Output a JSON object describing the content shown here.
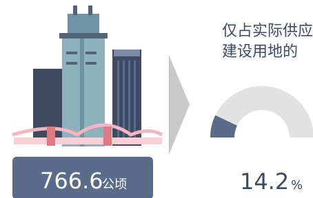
{
  "left": {
    "value": "766.6",
    "unit": "公顷"
  },
  "right": {
    "caption": [
      "仅占实际供应",
      "建设用地的"
    ],
    "percent": 14.2,
    "percent_unit": "%"
  }
}
